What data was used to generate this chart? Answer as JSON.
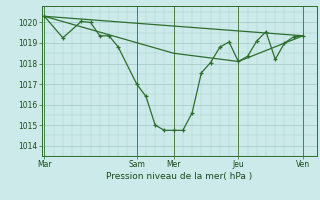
{
  "background_color": "#cceaea",
  "grid_color": "#aacccc",
  "line_color": "#2d6e2d",
  "xlabel": "Pression niveau de la mer( hPa )",
  "ylim": [
    1013.5,
    1020.8
  ],
  "yticks": [
    1014,
    1015,
    1016,
    1017,
    1018,
    1019,
    1020
  ],
  "xtick_labels": [
    "Mar",
    "Sam",
    "Mer",
    "Jeu",
    "Ven"
  ],
  "xtick_positions": [
    0,
    10,
    14,
    21,
    28
  ],
  "xlim": [
    -0.3,
    29.5
  ],
  "line1_x": [
    0,
    2,
    4,
    5,
    6,
    7,
    8,
    10,
    11,
    12,
    13,
    14,
    15,
    16,
    17,
    18,
    19,
    20,
    21,
    22,
    23,
    24,
    25,
    26,
    27,
    28
  ],
  "line1_y": [
    1020.3,
    1019.25,
    1020.05,
    1020.0,
    1019.35,
    1019.35,
    1018.8,
    1017.0,
    1016.4,
    1015.0,
    1014.75,
    1014.75,
    1014.75,
    1015.6,
    1017.55,
    1018.05,
    1018.8,
    1019.05,
    1018.1,
    1018.35,
    1019.1,
    1019.55,
    1018.2,
    1019.0,
    1019.3,
    1019.35
  ],
  "line2_x": [
    0,
    28
  ],
  "line2_y": [
    1020.3,
    1019.35
  ],
  "line3_x": [
    0,
    14,
    21,
    28
  ],
  "line3_y": [
    1020.3,
    1018.5,
    1018.1,
    1019.35
  ],
  "vline_x": [
    0,
    10,
    14,
    21,
    28
  ]
}
